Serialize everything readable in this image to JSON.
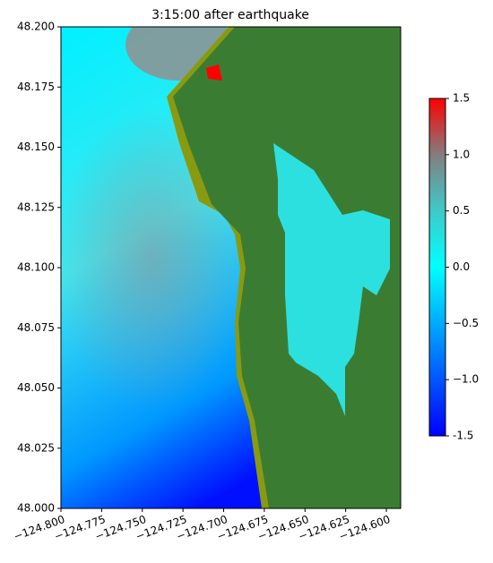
{
  "chart_data": {
    "type": "heatmap",
    "title": "3:15:00 after earthquake",
    "xlim": [
      -124.8,
      -124.5912
    ],
    "ylim": [
      48.0,
      48.2
    ],
    "xticks": [
      {
        "value": -124.8,
        "label": "−124.800"
      },
      {
        "value": -124.775,
        "label": "−124.775"
      },
      {
        "value": -124.75,
        "label": "−124.750"
      },
      {
        "value": -124.725,
        "label": "−124.725"
      },
      {
        "value": -124.7,
        "label": "−124.700"
      },
      {
        "value": -124.675,
        "label": "−124.675"
      },
      {
        "value": -124.65,
        "label": "−124.650"
      },
      {
        "value": -124.625,
        "label": "−124.625"
      },
      {
        "value": -124.6,
        "label": "−124.600"
      }
    ],
    "yticks": [
      {
        "value": 48.0,
        "label": "48.000"
      },
      {
        "value": 48.025,
        "label": "48.025"
      },
      {
        "value": 48.05,
        "label": "48.050"
      },
      {
        "value": 48.075,
        "label": "48.075"
      },
      {
        "value": 48.1,
        "label": "48.100"
      },
      {
        "value": 48.125,
        "label": "48.125"
      },
      {
        "value": 48.15,
        "label": "48.150"
      },
      {
        "value": 48.175,
        "label": "48.175"
      },
      {
        "value": 48.2,
        "label": "48.200"
      }
    ],
    "colorbar": {
      "lim": [
        -1.5,
        1.5
      ],
      "ticks": [
        -1.5,
        {
          "value": -1.0,
          "label": "−1.0"
        },
        {
          "value": -0.5,
          "label": "−0.5"
        },
        {
          "value": 0.0,
          "label": "0.0"
        },
        0.5,
        {
          "value": 1.0,
          "label": "1.0"
        },
        1.5
      ]
    }
  }
}
